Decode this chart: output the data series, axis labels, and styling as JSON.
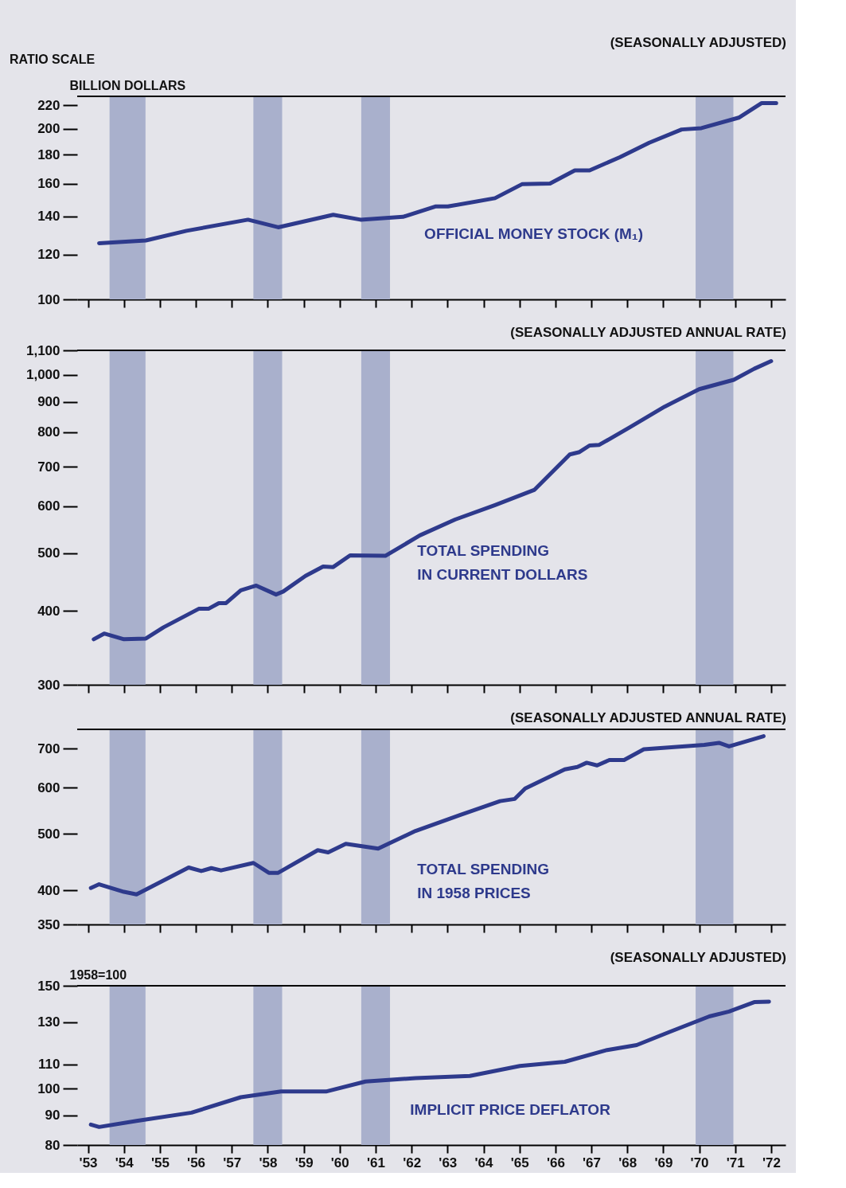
{
  "chart_data": [
    {
      "type": "line",
      "ylabel": "BILLION DOLLARS",
      "subtitle": "(SEASONALLY ADJUSTED)",
      "annotations": [
        "RATIO SCALE"
      ],
      "log": "y",
      "tick_labels": "y",
      "xlim": [
        1952.7,
        1972.4
      ],
      "ylim": [
        100,
        228
      ],
      "xticks": [
        {
          "value": 1953,
          "label": null
        },
        {
          "value": 1954,
          "label": null
        },
        {
          "value": 1955,
          "label": null
        },
        {
          "value": 1956,
          "label": null
        },
        {
          "value": 1957,
          "label": null
        },
        {
          "value": 1958,
          "label": null
        },
        {
          "value": 1959,
          "label": null
        },
        {
          "value": 1960,
          "label": null
        },
        {
          "value": 1961,
          "label": null
        },
        {
          "value": 1962,
          "label": null
        },
        {
          "value": 1963,
          "label": null
        },
        {
          "value": 1964,
          "label": null
        },
        {
          "value": 1965,
          "label": null
        },
        {
          "value": 1966,
          "label": null
        },
        {
          "value": 1967,
          "label": null
        },
        {
          "value": 1968,
          "label": null
        },
        {
          "value": 1969,
          "label": null
        },
        {
          "value": 1970,
          "label": null
        },
        {
          "value": 1971,
          "label": null
        },
        {
          "value": 1972,
          "label": null
        }
      ],
      "yticks": [
        100,
        120,
        140,
        160,
        180,
        200,
        220
      ],
      "bands": [
        {
          "axis": "x",
          "from": 1953.6,
          "to": 1954.6,
          "color": "#a9b0cc"
        },
        {
          "axis": "x",
          "from": 1957.6,
          "to": 1958.4,
          "color": "#a9b0cc"
        },
        {
          "axis": "x",
          "from": 1960.6,
          "to": 1961.4,
          "color": "#a9b0cc"
        },
        {
          "axis": "x",
          "from": 1969.9,
          "to": 1970.95,
          "color": "#a9b0cc"
        }
      ],
      "series": [
        {
          "name": "OFFICIAL MONEY STOCK (M₁)",
          "color": "#2e3a8c",
          "x": [
            1953.31,
            1954.61,
            1955.74,
            1957.45,
            1958.29,
            1959.82,
            1960.58,
            1961.76,
            1962.66,
            1963.01,
            1964.32,
            1965.07,
            1965.85,
            1966.54,
            1966.95,
            1967.79,
            1968.61,
            1969.51,
            1970.06,
            1971.1,
            1971.73,
            1972.14
          ],
          "values": [
            125.6,
            127.0,
            132.1,
            138.2,
            134.0,
            141.0,
            138.2,
            139.8,
            145.8,
            145.8,
            150.8,
            159.6,
            160.0,
            168.8,
            168.8,
            178.1,
            188.9,
            199.3,
            200.4,
            209.1,
            221.8,
            221.8
          ]
        }
      ]
    },
    {
      "type": "line",
      "subtitle": "(SEASONALLY ADJUSTED ANNUAL RATE)",
      "log": "y",
      "tick_labels": "y",
      "xlim": [
        1952.7,
        1972.4
      ],
      "ylim": [
        300,
        1100
      ],
      "xticks": [
        {
          "value": 1953,
          "label": null
        },
        {
          "value": 1954,
          "label": null
        },
        {
          "value": 1955,
          "label": null
        },
        {
          "value": 1956,
          "label": null
        },
        {
          "value": 1957,
          "label": null
        },
        {
          "value": 1958,
          "label": null
        },
        {
          "value": 1959,
          "label": null
        },
        {
          "value": 1960,
          "label": null
        },
        {
          "value": 1961,
          "label": null
        },
        {
          "value": 1962,
          "label": null
        },
        {
          "value": 1963,
          "label": null
        },
        {
          "value": 1964,
          "label": null
        },
        {
          "value": 1965,
          "label": null
        },
        {
          "value": 1966,
          "label": null
        },
        {
          "value": 1967,
          "label": null
        },
        {
          "value": 1968,
          "label": null
        },
        {
          "value": 1969,
          "label": null
        },
        {
          "value": 1970,
          "label": null
        },
        {
          "value": 1971,
          "label": null
        },
        {
          "value": 1972,
          "label": null
        }
      ],
      "yticks": [
        300,
        400,
        500,
        600,
        700,
        800,
        900,
        {
          "value": 1000,
          "label": "1,000"
        },
        {
          "value": 1100,
          "label": "1,100"
        }
      ],
      "bands": [
        {
          "axis": "x",
          "from": 1953.6,
          "to": 1954.6,
          "color": "#a9b0cc"
        },
        {
          "axis": "x",
          "from": 1957.6,
          "to": 1958.4,
          "color": "#a9b0cc"
        },
        {
          "axis": "x",
          "from": 1960.6,
          "to": 1961.4,
          "color": "#a9b0cc"
        },
        {
          "axis": "x",
          "from": 1969.9,
          "to": 1970.95,
          "color": "#a9b0cc"
        }
      ],
      "series": [
        {
          "name": "TOTAL SPENDING\nIN CURRENT DOLLARS",
          "color": "#2e3a8c",
          "x": [
            1953.16,
            1953.45,
            1954.0,
            1954.61,
            1955.1,
            1956.08,
            1956.35,
            1956.64,
            1956.84,
            1957.25,
            1957.68,
            1958.23,
            1958.43,
            1959.05,
            1959.54,
            1959.82,
            1960.29,
            1961.27,
            1962.23,
            1963.21,
            1964.32,
            1965.42,
            1966.4,
            1966.67,
            1966.95,
            1967.22,
            1968.06,
            1969.04,
            1970.0,
            1970.96,
            1971.53,
            1972.0
          ],
          "values": [
            358,
            366,
            358,
            359,
            375,
            403,
            403,
            412,
            412,
            433,
            441,
            426,
            431,
            458,
            475,
            474,
            496,
            495,
            536,
            570,
            603,
            640,
            734,
            741,
            760,
            762,
            815,
            884,
            946,
            981,
            1024,
            1055
          ]
        }
      ]
    },
    {
      "type": "line",
      "subtitle": "(SEASONALLY ADJUSTED ANNUAL RATE)",
      "log": "y",
      "tick_labels": "y",
      "xlim": [
        1952.7,
        1972.4
      ],
      "ylim": [
        350,
        755
      ],
      "xticks": [
        {
          "value": 1953,
          "label": null
        },
        {
          "value": 1954,
          "label": null
        },
        {
          "value": 1955,
          "label": null
        },
        {
          "value": 1956,
          "label": null
        },
        {
          "value": 1957,
          "label": null
        },
        {
          "value": 1958,
          "label": null
        },
        {
          "value": 1959,
          "label": null
        },
        {
          "value": 1960,
          "label": null
        },
        {
          "value": 1961,
          "label": null
        },
        {
          "value": 1962,
          "label": null
        },
        {
          "value": 1963,
          "label": null
        },
        {
          "value": 1964,
          "label": null
        },
        {
          "value": 1965,
          "label": null
        },
        {
          "value": 1966,
          "label": null
        },
        {
          "value": 1967,
          "label": null
        },
        {
          "value": 1968,
          "label": null
        },
        {
          "value": 1969,
          "label": null
        },
        {
          "value": 1970,
          "label": null
        },
        {
          "value": 1971,
          "label": null
        },
        {
          "value": 1972,
          "label": null
        }
      ],
      "yticks": [
        350,
        400,
        500,
        600,
        700
      ],
      "bands": [
        {
          "axis": "x",
          "from": 1953.6,
          "to": 1954.6,
          "color": "#a9b0cc"
        },
        {
          "axis": "x",
          "from": 1957.6,
          "to": 1958.4,
          "color": "#a9b0cc"
        },
        {
          "axis": "x",
          "from": 1960.6,
          "to": 1961.4,
          "color": "#a9b0cc"
        },
        {
          "axis": "x",
          "from": 1969.9,
          "to": 1970.95,
          "color": "#a9b0cc"
        }
      ],
      "series": [
        {
          "name": "TOTAL SPENDING\nIN 1958 PRICES",
          "color": "#2e3a8c",
          "x": [
            1953.08,
            1953.31,
            1954.0,
            1954.35,
            1955.8,
            1956.15,
            1956.43,
            1956.7,
            1957.6,
            1958.03,
            1958.29,
            1959.39,
            1959.68,
            1960.17,
            1961.07,
            1962.11,
            1963.36,
            1964.46,
            1964.87,
            1965.16,
            1966.26,
            1966.61,
            1966.87,
            1967.16,
            1967.5,
            1967.91,
            1968.46,
            1970.14,
            1970.55,
            1970.83,
            1971.79
          ],
          "values": [
            404,
            410,
            398,
            394,
            438,
            432,
            437,
            433,
            446,
            429,
            429,
            469,
            465,
            481,
            472,
            506,
            539,
            569,
            574,
            598,
            645,
            651,
            662,
            655,
            669,
            669,
            698,
            710,
            716,
            706,
            735
          ]
        }
      ]
    },
    {
      "type": "line",
      "ylabel": "1958=100",
      "subtitle": "(SEASONALLY ADJUSTED)",
      "log": "y",
      "xlim": [
        1952.7,
        1972.4
      ],
      "ylim": [
        80,
        150
      ],
      "xticks": [
        {
          "value": 1953,
          "label": "'53"
        },
        {
          "value": 1954,
          "label": "'54"
        },
        {
          "value": 1955,
          "label": "'55"
        },
        {
          "value": 1956,
          "label": "'56"
        },
        {
          "value": 1957,
          "label": "'57"
        },
        {
          "value": 1958,
          "label": "'58"
        },
        {
          "value": 1959,
          "label": "'59"
        },
        {
          "value": 1960,
          "label": "'60"
        },
        {
          "value": 1961,
          "label": "'61"
        },
        {
          "value": 1962,
          "label": "'62"
        },
        {
          "value": 1963,
          "label": "'63"
        },
        {
          "value": 1964,
          "label": "'64"
        },
        {
          "value": 1965,
          "label": "'65"
        },
        {
          "value": 1966,
          "label": "'66"
        },
        {
          "value": 1967,
          "label": "'67"
        },
        {
          "value": 1968,
          "label": "'68"
        },
        {
          "value": 1969,
          "label": "'69"
        },
        {
          "value": 1970,
          "label": "'70"
        },
        {
          "value": 1971,
          "label": "'71"
        },
        {
          "value": 1972,
          "label": "'72"
        }
      ],
      "yticks": [
        80,
        90,
        100,
        110,
        130,
        150
      ],
      "bands": [
        {
          "axis": "x",
          "from": 1953.6,
          "to": 1954.6,
          "color": "#a9b0cc"
        },
        {
          "axis": "x",
          "from": 1957.6,
          "to": 1958.4,
          "color": "#a9b0cc"
        },
        {
          "axis": "x",
          "from": 1960.6,
          "to": 1961.4,
          "color": "#a9b0cc"
        },
        {
          "axis": "x",
          "from": 1969.9,
          "to": 1970.95,
          "color": "#a9b0cc"
        }
      ],
      "series": [
        {
          "name": "IMPLICIT PRICE DEFLATOR",
          "color": "#2e3a8c",
          "x": [
            1953.08,
            1953.31,
            1954.35,
            1955.88,
            1957.25,
            1958.37,
            1959.62,
            1960.72,
            1962.11,
            1963.62,
            1965.01,
            1966.26,
            1967.44,
            1968.26,
            1969.16,
            1970.28,
            1970.83,
            1971.53,
            1971.94
          ],
          "values": [
            86.7,
            85.9,
            88.0,
            90.9,
            96.6,
            98.8,
            98.8,
            102.8,
            104.2,
            105.1,
            109.3,
            111.1,
            116.4,
            118.7,
            124.9,
            132.9,
            135.5,
            140.6,
            140.9
          ]
        }
      ]
    }
  ]
}
